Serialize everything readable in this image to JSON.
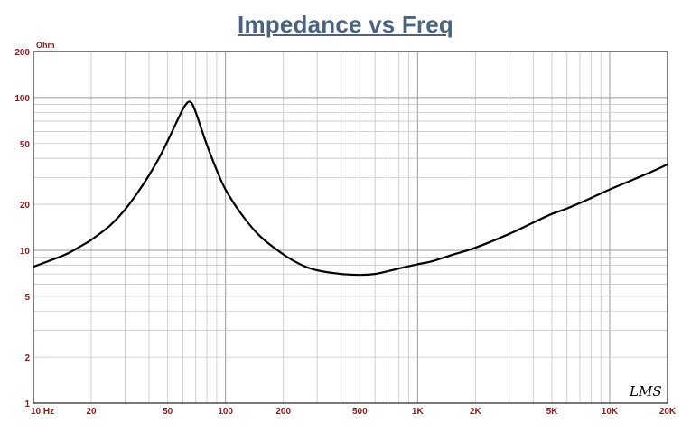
{
  "chart_data": {
    "type": "line",
    "title": "Impedance vs Freq",
    "ylabel": "Ohm",
    "xscale": "log",
    "yscale": "log",
    "xlim": [
      10,
      20000
    ],
    "ylim": [
      1,
      200
    ],
    "grid": true,
    "x_ticks": [
      {
        "value": 10,
        "label": "10 Hz"
      },
      {
        "value": 20,
        "label": "20"
      },
      {
        "value": 50,
        "label": "50"
      },
      {
        "value": 100,
        "label": "100"
      },
      {
        "value": 200,
        "label": "200"
      },
      {
        "value": 500,
        "label": "500"
      },
      {
        "value": 1000,
        "label": "1K"
      },
      {
        "value": 2000,
        "label": "2K"
      },
      {
        "value": 5000,
        "label": "5K"
      },
      {
        "value": 10000,
        "label": "10K"
      },
      {
        "value": 20000,
        "label": "20K"
      }
    ],
    "y_ticks": [
      {
        "value": 1,
        "label": "1"
      },
      {
        "value": 2,
        "label": "2"
      },
      {
        "value": 5,
        "label": "5"
      },
      {
        "value": 10,
        "label": "10"
      },
      {
        "value": 20,
        "label": "20"
      },
      {
        "value": 50,
        "label": "50"
      },
      {
        "value": 100,
        "label": "100"
      },
      {
        "value": 200,
        "label": "200"
      }
    ],
    "series": [
      {
        "x": [
          10,
          12,
          15,
          18,
          20,
          25,
          30,
          35,
          40,
          45,
          50,
          55,
          60,
          63,
          65,
          67,
          70,
          75,
          80,
          90,
          100,
          120,
          150,
          200,
          250,
          300,
          400,
          500,
          600,
          700,
          800,
          1000,
          1200,
          1500,
          2000,
          3000,
          4000,
          5000,
          6000,
          8000,
          10000,
          15000,
          20000
        ],
        "y": [
          7.8,
          8.5,
          9.5,
          10.8,
          11.7,
          14.5,
          18.5,
          24.0,
          31.0,
          40.0,
          52.0,
          67.0,
          84.0,
          92.0,
          94.0,
          91.0,
          80.0,
          62.0,
          49.0,
          33.5,
          25.0,
          17.5,
          12.5,
          9.4,
          8.0,
          7.4,
          7.0,
          6.9,
          7.0,
          7.3,
          7.6,
          8.1,
          8.5,
          9.3,
          10.4,
          12.8,
          15.2,
          17.3,
          18.8,
          22.0,
          25.0,
          31.0,
          36.5
        ],
        "color": "#000000"
      }
    ],
    "watermark": "LMS"
  }
}
